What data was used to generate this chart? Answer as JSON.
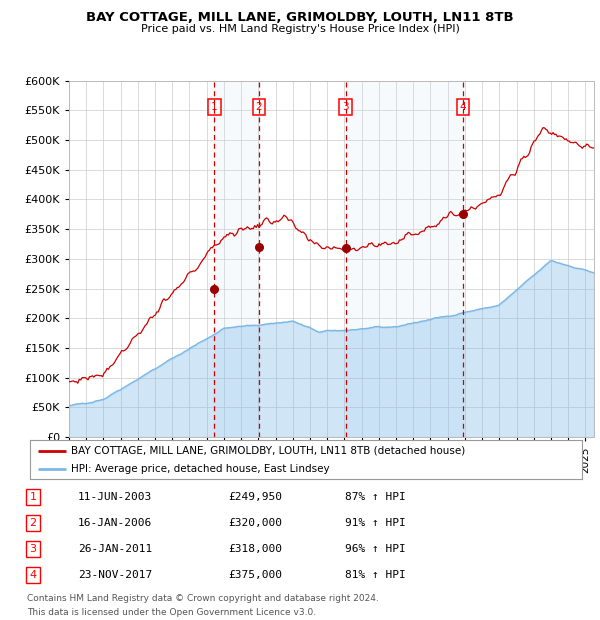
{
  "title": "BAY COTTAGE, MILL LANE, GRIMOLDBY, LOUTH, LN11 8TB",
  "subtitle": "Price paid vs. HM Land Registry's House Price Index (HPI)",
  "legend_line1": "BAY COTTAGE, MILL LANE, GRIMOLDBY, LOUTH, LN11 8TB (detached house)",
  "legend_line2": "HPI: Average price, detached house, East Lindsey",
  "footer1": "Contains HM Land Registry data © Crown copyright and database right 2024.",
  "footer2": "This data is licensed under the Open Government Licence v3.0.",
  "transactions": [
    {
      "num": 1,
      "date": "11-JUN-2003",
      "price": 249950,
      "pct": "87%",
      "dir": "↑"
    },
    {
      "num": 2,
      "date": "16-JAN-2006",
      "price": 320000,
      "pct": "91%",
      "dir": "↑"
    },
    {
      "num": 3,
      "date": "26-JAN-2011",
      "price": 318000,
      "pct": "96%",
      "dir": "↑"
    },
    {
      "num": 4,
      "date": "23-NOV-2017",
      "price": 375000,
      "pct": "81%",
      "dir": "↑"
    }
  ],
  "transaction_dates_decimal": [
    2003.44,
    2006.04,
    2011.07,
    2017.9
  ],
  "transaction_prices": [
    249950,
    320000,
    318000,
    375000
  ],
  "hpi_color": "#7ab8e8",
  "price_color": "#cc0000",
  "dot_color": "#990000",
  "vline_color": "#cc0000",
  "plot_bg": "#ffffff",
  "grid_color": "#cccccc",
  "ylim": [
    0,
    600000
  ],
  "yticks": [
    0,
    50000,
    100000,
    150000,
    200000,
    250000,
    300000,
    350000,
    400000,
    450000,
    500000,
    550000,
    600000
  ],
  "xlim_start": 1995.0,
  "xlim_end": 2025.5
}
